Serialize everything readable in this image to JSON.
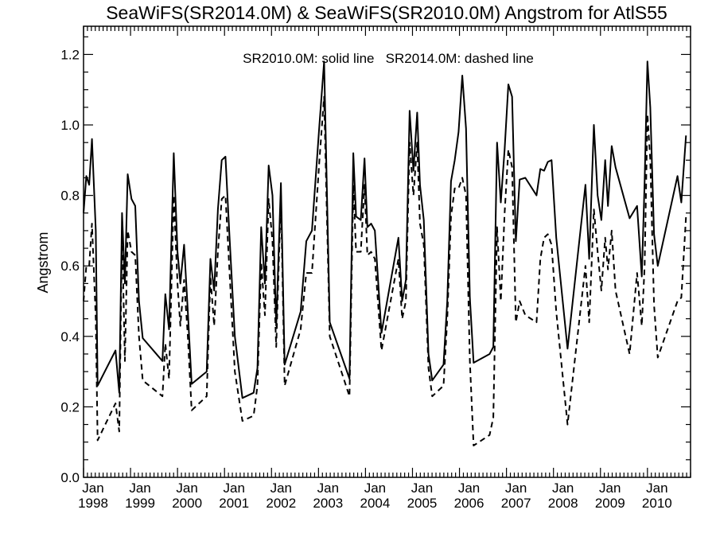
{
  "chart_data": {
    "type": "line",
    "title": "SeaWiFS(SR2014.0M) & SeaWiFS(SR2010.0M)  Angstrom for AtlS55",
    "xlabel": "",
    "ylabel": "Angstrom",
    "annotation": "SR2010.0M: solid line   SR2014.0M: dashed line",
    "xlim": [
      1998.0,
      2010.917
    ],
    "ylim": [
      0.0,
      1.28
    ],
    "y_ticks": [
      {
        "value": 0.0,
        "label": "0.0"
      },
      {
        "value": 0.2,
        "label": "0.2"
      },
      {
        "value": 0.4,
        "label": "0.4"
      },
      {
        "value": 0.6,
        "label": "0.6"
      },
      {
        "value": 0.8,
        "label": "0.8"
      },
      {
        "value": 1.0,
        "label": "1.0"
      },
      {
        "value": 1.2,
        "label": "1.2"
      }
    ],
    "x_ticks": [
      {
        "value": 1998.0,
        "month": "Jan",
        "year": "1998"
      },
      {
        "value": 1999.0,
        "month": "Jan",
        "year": "1999"
      },
      {
        "value": 2000.0,
        "month": "Jan",
        "year": "2000"
      },
      {
        "value": 2001.0,
        "month": "Jan",
        "year": "2001"
      },
      {
        "value": 2002.0,
        "month": "Jan",
        "year": "2002"
      },
      {
        "value": 2003.0,
        "month": "Jan",
        "year": "2003"
      },
      {
        "value": 2004.0,
        "month": "Jan",
        "year": "2004"
      },
      {
        "value": 2005.0,
        "month": "Jan",
        "year": "2005"
      },
      {
        "value": 2006.0,
        "month": "Jan",
        "year": "2006"
      },
      {
        "value": 2007.0,
        "month": "Jan",
        "year": "2007"
      },
      {
        "value": 2008.0,
        "month": "Jan",
        "year": "2008"
      },
      {
        "value": 2009.0,
        "month": "Jan",
        "year": "2009"
      },
      {
        "value": 2010.0,
        "month": "Jan",
        "year": "2010"
      }
    ],
    "series": [
      {
        "name": "SR2010.0M",
        "style": "solid",
        "color": "#000000",
        "points": [
          [
            1998.0,
            0.75
          ],
          [
            1998.06,
            0.855
          ],
          [
            1998.12,
            0.83
          ],
          [
            1998.18,
            0.96
          ],
          [
            1998.26,
            0.7
          ],
          [
            1998.3,
            0.26
          ],
          [
            1998.68,
            0.36
          ],
          [
            1998.76,
            0.24
          ],
          [
            1998.82,
            0.75
          ],
          [
            1998.88,
            0.55
          ],
          [
            1998.94,
            0.86
          ],
          [
            1999.02,
            0.79
          ],
          [
            1999.1,
            0.77
          ],
          [
            1999.18,
            0.5
          ],
          [
            1999.26,
            0.395
          ],
          [
            1999.68,
            0.33
          ],
          [
            1999.74,
            0.52
          ],
          [
            1999.82,
            0.42
          ],
          [
            1999.92,
            0.92
          ],
          [
            2000.0,
            0.64
          ],
          [
            2000.06,
            0.55
          ],
          [
            2000.14,
            0.66
          ],
          [
            2000.22,
            0.47
          ],
          [
            2000.3,
            0.265
          ],
          [
            2000.62,
            0.3
          ],
          [
            2000.7,
            0.62
          ],
          [
            2000.78,
            0.53
          ],
          [
            2000.86,
            0.76
          ],
          [
            2000.94,
            0.9
          ],
          [
            2001.02,
            0.91
          ],
          [
            2001.1,
            0.7
          ],
          [
            2001.22,
            0.4
          ],
          [
            2001.38,
            0.225
          ],
          [
            2001.62,
            0.24
          ],
          [
            2001.7,
            0.31
          ],
          [
            2001.78,
            0.71
          ],
          [
            2001.86,
            0.55
          ],
          [
            2001.94,
            0.885
          ],
          [
            2002.02,
            0.8
          ],
          [
            2002.1,
            0.43
          ],
          [
            2002.2,
            0.835
          ],
          [
            2002.28,
            0.32
          ],
          [
            2002.62,
            0.47
          ],
          [
            2002.74,
            0.67
          ],
          [
            2002.86,
            0.7
          ],
          [
            2002.94,
            0.85
          ],
          [
            2003.02,
            1.0
          ],
          [
            2003.12,
            1.18
          ],
          [
            2003.24,
            0.44
          ],
          [
            2003.66,
            0.28
          ],
          [
            2003.74,
            0.92
          ],
          [
            2003.8,
            0.74
          ],
          [
            2003.9,
            0.73
          ],
          [
            2003.98,
            0.905
          ],
          [
            2004.04,
            0.71
          ],
          [
            2004.12,
            0.72
          ],
          [
            2004.2,
            0.7
          ],
          [
            2004.34,
            0.41
          ],
          [
            2004.7,
            0.68
          ],
          [
            2004.78,
            0.5
          ],
          [
            2004.86,
            0.56
          ],
          [
            2004.94,
            1.04
          ],
          [
            2005.02,
            0.87
          ],
          [
            2005.1,
            1.035
          ],
          [
            2005.16,
            0.83
          ],
          [
            2005.24,
            0.73
          ],
          [
            2005.34,
            0.35
          ],
          [
            2005.42,
            0.275
          ],
          [
            2005.66,
            0.32
          ],
          [
            2005.74,
            0.5
          ],
          [
            2005.82,
            0.84
          ],
          [
            2005.9,
            0.9
          ],
          [
            2005.98,
            0.98
          ],
          [
            2006.06,
            1.14
          ],
          [
            2006.14,
            0.99
          ],
          [
            2006.22,
            0.51
          ],
          [
            2006.3,
            0.325
          ],
          [
            2006.64,
            0.35
          ],
          [
            2006.72,
            0.37
          ],
          [
            2006.8,
            0.95
          ],
          [
            2006.88,
            0.78
          ],
          [
            2006.96,
            0.93
          ],
          [
            2007.04,
            1.115
          ],
          [
            2007.12,
            1.08
          ],
          [
            2007.2,
            0.67
          ],
          [
            2007.28,
            0.845
          ],
          [
            2007.4,
            0.85
          ],
          [
            2007.64,
            0.8
          ],
          [
            2007.72,
            0.875
          ],
          [
            2007.8,
            0.87
          ],
          [
            2007.88,
            0.895
          ],
          [
            2007.96,
            0.9
          ],
          [
            2008.06,
            0.68
          ],
          [
            2008.3,
            0.365
          ],
          [
            2008.68,
            0.83
          ],
          [
            2008.76,
            0.62
          ],
          [
            2008.86,
            1.0
          ],
          [
            2008.94,
            0.8
          ],
          [
            2009.02,
            0.73
          ],
          [
            2009.1,
            0.9
          ],
          [
            2009.16,
            0.77
          ],
          [
            2009.24,
            0.94
          ],
          [
            2009.32,
            0.88
          ],
          [
            2009.62,
            0.735
          ],
          [
            2009.78,
            0.77
          ],
          [
            2009.88,
            0.57
          ],
          [
            2009.94,
            0.84
          ],
          [
            2010.0,
            1.18
          ],
          [
            2010.06,
            1.05
          ],
          [
            2010.14,
            0.69
          ],
          [
            2010.22,
            0.6
          ],
          [
            2010.64,
            0.855
          ],
          [
            2010.72,
            0.78
          ],
          [
            2010.82,
            0.97
          ]
        ]
      },
      {
        "name": "SR2014.0M",
        "style": "dashed",
        "color": "#000000",
        "points": [
          [
            1998.0,
            0.5
          ],
          [
            1998.06,
            0.6
          ],
          [
            1998.12,
            0.6
          ],
          [
            1998.18,
            0.72
          ],
          [
            1998.26,
            0.45
          ],
          [
            1998.3,
            0.105
          ],
          [
            1998.68,
            0.21
          ],
          [
            1998.76,
            0.13
          ],
          [
            1998.82,
            0.7
          ],
          [
            1998.88,
            0.33
          ],
          [
            1998.94,
            0.7
          ],
          [
            1999.02,
            0.64
          ],
          [
            1999.1,
            0.63
          ],
          [
            1999.18,
            0.4
          ],
          [
            1999.26,
            0.275
          ],
          [
            1999.68,
            0.23
          ],
          [
            1999.74,
            0.38
          ],
          [
            1999.82,
            0.28
          ],
          [
            1999.92,
            0.8
          ],
          [
            2000.0,
            0.55
          ],
          [
            2000.06,
            0.43
          ],
          [
            2000.14,
            0.56
          ],
          [
            2000.22,
            0.4
          ],
          [
            2000.3,
            0.19
          ],
          [
            2000.62,
            0.23
          ],
          [
            2000.7,
            0.57
          ],
          [
            2000.78,
            0.43
          ],
          [
            2000.86,
            0.64
          ],
          [
            2000.94,
            0.79
          ],
          [
            2001.02,
            0.8
          ],
          [
            2001.1,
            0.6
          ],
          [
            2001.22,
            0.3
          ],
          [
            2001.38,
            0.16
          ],
          [
            2001.62,
            0.175
          ],
          [
            2001.7,
            0.26
          ],
          [
            2001.78,
            0.61
          ],
          [
            2001.86,
            0.46
          ],
          [
            2001.94,
            0.79
          ],
          [
            2002.02,
            0.67
          ],
          [
            2002.1,
            0.37
          ],
          [
            2002.2,
            0.8
          ],
          [
            2002.28,
            0.26
          ],
          [
            2002.62,
            0.42
          ],
          [
            2002.74,
            0.58
          ],
          [
            2002.86,
            0.58
          ],
          [
            2002.94,
            0.74
          ],
          [
            2003.02,
            0.9
          ],
          [
            2003.12,
            1.08
          ],
          [
            2003.24,
            0.4
          ],
          [
            2003.66,
            0.23
          ],
          [
            2003.74,
            0.83
          ],
          [
            2003.8,
            0.64
          ],
          [
            2003.9,
            0.64
          ],
          [
            2003.98,
            0.83
          ],
          [
            2004.04,
            0.63
          ],
          [
            2004.12,
            0.64
          ],
          [
            2004.2,
            0.62
          ],
          [
            2004.34,
            0.36
          ],
          [
            2004.7,
            0.62
          ],
          [
            2004.78,
            0.45
          ],
          [
            2004.86,
            0.5
          ],
          [
            2004.94,
            0.95
          ],
          [
            2005.02,
            0.8
          ],
          [
            2005.1,
            0.95
          ],
          [
            2005.16,
            0.72
          ],
          [
            2005.24,
            0.66
          ],
          [
            2005.34,
            0.31
          ],
          [
            2005.42,
            0.23
          ],
          [
            2005.66,
            0.26
          ],
          [
            2005.74,
            0.45
          ],
          [
            2005.82,
            0.74
          ],
          [
            2005.9,
            0.82
          ],
          [
            2005.98,
            0.82
          ],
          [
            2006.06,
            0.85
          ],
          [
            2006.14,
            0.8
          ],
          [
            2006.22,
            0.33
          ],
          [
            2006.3,
            0.09
          ],
          [
            2006.64,
            0.12
          ],
          [
            2006.72,
            0.17
          ],
          [
            2006.8,
            0.71
          ],
          [
            2006.88,
            0.5
          ],
          [
            2006.96,
            0.75
          ],
          [
            2007.04,
            0.93
          ],
          [
            2007.12,
            0.88
          ],
          [
            2007.2,
            0.44
          ],
          [
            2007.28,
            0.5
          ],
          [
            2007.4,
            0.46
          ],
          [
            2007.64,
            0.44
          ],
          [
            2007.72,
            0.62
          ],
          [
            2007.8,
            0.68
          ],
          [
            2007.88,
            0.69
          ],
          [
            2007.96,
            0.66
          ],
          [
            2008.06,
            0.47
          ],
          [
            2008.3,
            0.15
          ],
          [
            2008.68,
            0.6
          ],
          [
            2008.76,
            0.44
          ],
          [
            2008.86,
            0.76
          ],
          [
            2008.94,
            0.64
          ],
          [
            2009.02,
            0.53
          ],
          [
            2009.1,
            0.68
          ],
          [
            2009.16,
            0.59
          ],
          [
            2009.24,
            0.7
          ],
          [
            2009.32,
            0.53
          ],
          [
            2009.62,
            0.35
          ],
          [
            2009.78,
            0.58
          ],
          [
            2009.88,
            0.43
          ],
          [
            2009.94,
            0.6
          ],
          [
            2010.0,
            1.03
          ],
          [
            2010.06,
            0.9
          ],
          [
            2010.14,
            0.49
          ],
          [
            2010.22,
            0.34
          ],
          [
            2010.64,
            0.5
          ],
          [
            2010.72,
            0.51
          ],
          [
            2010.82,
            0.74
          ]
        ]
      }
    ]
  }
}
